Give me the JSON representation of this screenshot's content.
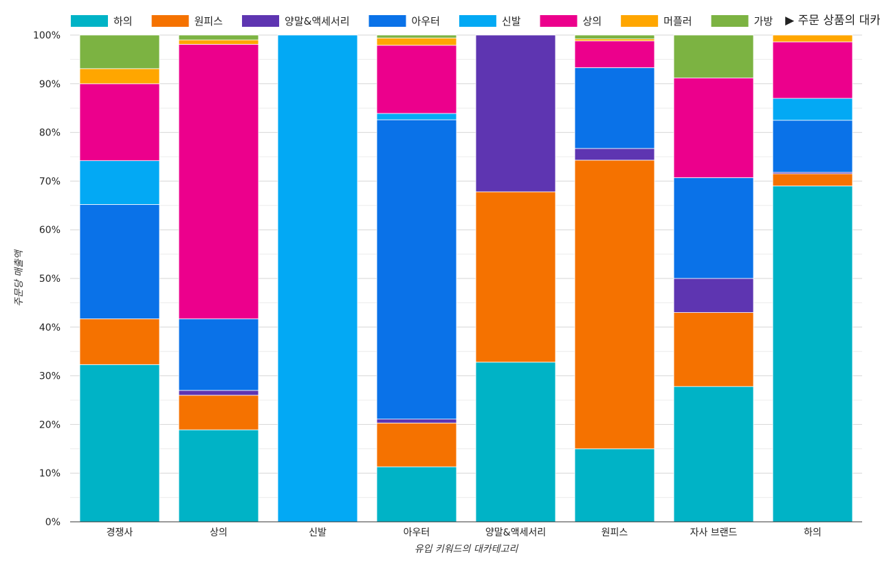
{
  "chart_data": {
    "type": "bar",
    "stacked": true,
    "normalized": true,
    "legend_title": "▶ 주문 상품의 대카테고리",
    "legend_position": "top",
    "xlabel": "유입 키워드의 대카테고리",
    "ylabel": "주문당 매출액",
    "ylim": [
      0,
      100
    ],
    "yticks": [
      "0%",
      "10%",
      "20%",
      "30%",
      "40%",
      "50%",
      "60%",
      "70%",
      "80%",
      "90%",
      "100%"
    ],
    "grid": true,
    "categories": [
      "경쟁사",
      "상의",
      "신발",
      "아우터",
      "양말&액세서리",
      "원피스",
      "자사 브랜드",
      "하의"
    ],
    "series": [
      {
        "name": "하의",
        "color": "#00b3c6",
        "values": [
          32.3,
          18.9,
          0,
          11.3,
          32.8,
          15.0,
          27.8,
          69.0
        ]
      },
      {
        "name": "원피스",
        "color": "#f57200",
        "values": [
          9.4,
          7.1,
          0,
          9.0,
          35.0,
          59.3,
          15.2,
          2.5
        ]
      },
      {
        "name": "양말&액세서리",
        "color": "#5e35b1",
        "values": [
          0,
          1.0,
          0,
          0.8,
          32.2,
          2.4,
          7.0,
          0.3
        ]
      },
      {
        "name": "아우터",
        "color": "#0a72e8",
        "values": [
          23.5,
          14.7,
          0,
          61.5,
          0,
          16.6,
          20.7,
          10.7
        ]
      },
      {
        "name": "신발",
        "color": "#03a9f4",
        "values": [
          9.0,
          0,
          100,
          1.3,
          0,
          0,
          0,
          4.5
        ]
      },
      {
        "name": "상의",
        "color": "#ec008c",
        "values": [
          15.8,
          56.4,
          0,
          14.0,
          0,
          5.5,
          20.5,
          11.6
        ]
      },
      {
        "name": "머플러",
        "color": "#ffa600",
        "values": [
          3.1,
          0.9,
          0,
          1.5,
          0,
          0.4,
          0,
          1.4
        ]
      },
      {
        "name": "가방",
        "color": "#7cb342",
        "values": [
          6.9,
          1.0,
          0,
          0.6,
          0,
          0.8,
          8.8,
          0
        ]
      }
    ]
  }
}
